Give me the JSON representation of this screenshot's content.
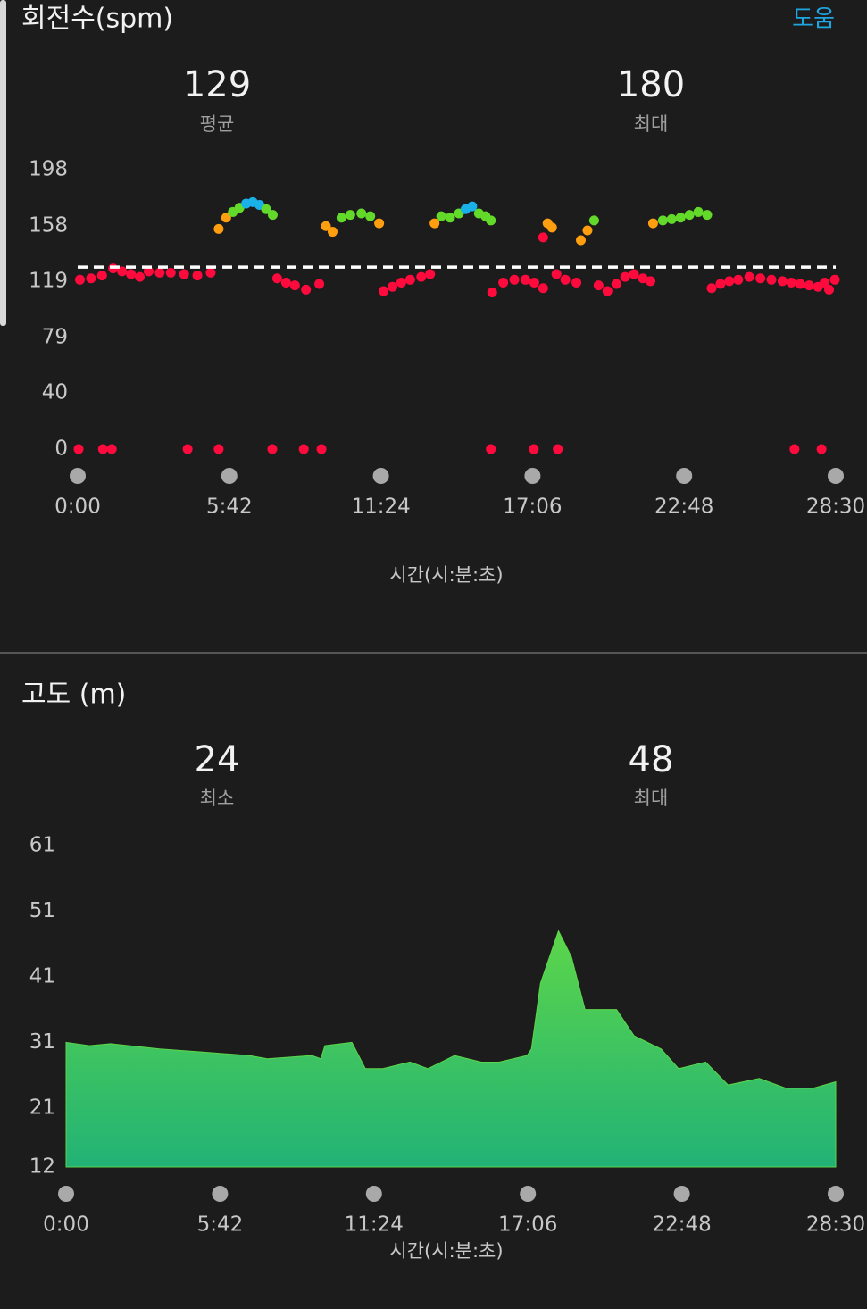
{
  "help": "도움",
  "chart_data": [
    {
      "type": "scatter",
      "title": "회전수(spm)",
      "stats": [
        {
          "value": 129,
          "label": "평균"
        },
        {
          "value": 180,
          "label": "최대"
        }
      ],
      "x_label": "시간(시:분:초)",
      "xlim": [
        0,
        1710
      ],
      "xticks": [
        {
          "value": 0,
          "label": "0:00"
        },
        {
          "value": 342,
          "label": "5:42"
        },
        {
          "value": 684,
          "label": "11:24"
        },
        {
          "value": 1026,
          "label": "17:06"
        },
        {
          "value": 1368,
          "label": "22:48"
        },
        {
          "value": 1710,
          "label": "28:30"
        }
      ],
      "ylim": [
        0,
        198
      ],
      "yticks": [
        0,
        40,
        79,
        119,
        158,
        198
      ],
      "x": [
        5,
        30,
        55,
        80,
        100,
        120,
        140,
        160,
        185,
        210,
        240,
        270,
        300,
        318,
        335,
        350,
        365,
        380,
        395,
        410,
        425,
        440,
        450,
        470,
        490,
        515,
        545,
        560,
        575,
        595,
        615,
        640,
        660,
        680,
        690,
        710,
        730,
        750,
        775,
        795,
        805,
        820,
        840,
        860,
        875,
        890,
        905,
        920,
        932,
        935,
        960,
        985,
        1010,
        1030,
        1050,
        1050,
        1060,
        1070,
        1080,
        1100,
        1125,
        1135,
        1150,
        1165,
        1175,
        1195,
        1215,
        1235,
        1255,
        1275,
        1292,
        1298,
        1320,
        1340,
        1360,
        1380,
        1400,
        1420,
        1430,
        1450,
        1470,
        1490,
        1515,
        1540,
        1565,
        1590,
        1610,
        1630,
        1650,
        1670,
        1685,
        1695,
        1708,
        2,
        57,
        77,
        248,
        318,
        439,
        510,
        550,
        932,
        1029,
        1083,
        1617,
        1678
      ],
      "values": [
        120,
        121,
        123,
        128,
        126,
        124,
        122,
        126,
        125,
        125,
        124,
        123,
        125,
        156,
        164,
        168,
        171,
        174,
        175,
        173,
        170,
        166,
        121,
        118,
        116,
        113,
        117,
        158,
        154,
        164,
        166,
        167,
        165,
        160,
        112,
        115,
        118,
        120,
        122,
        124,
        160,
        165,
        164,
        167,
        170,
        172,
        167,
        165,
        162,
        111,
        118,
        120,
        120,
        118,
        114,
        150,
        160,
        157,
        124,
        120,
        118,
        148,
        155,
        162,
        116,
        112,
        117,
        122,
        124,
        121,
        119,
        160,
        162,
        163,
        164,
        166,
        168,
        166,
        114,
        117,
        119,
        120,
        122,
        121,
        120,
        119,
        118,
        117,
        116,
        115,
        118,
        113,
        120,
        0,
        0,
        0,
        0,
        0,
        0,
        0,
        0,
        0,
        0,
        0,
        0,
        0
      ],
      "colors": [
        "#ff0a3c",
        "#ff0a3c",
        "#ff0a3c",
        "#ff0a3c",
        "#ff0a3c",
        "#ff0a3c",
        "#ff0a3c",
        "#ff0a3c",
        "#ff0a3c",
        "#ff0a3c",
        "#ff0a3c",
        "#ff0a3c",
        "#ff0a3c",
        "#ff9f0f",
        "#ff9f0f",
        "#63d92a",
        "#63d92a",
        "#1ab0e8",
        "#1ab0e8",
        "#1ab0e8",
        "#63d92a",
        "#63d92a",
        "#ff0a3c",
        "#ff0a3c",
        "#ff0a3c",
        "#ff0a3c",
        "#ff0a3c",
        "#ff9f0f",
        "#ff9f0f",
        "#63d92a",
        "#63d92a",
        "#63d92a",
        "#63d92a",
        "#ff9f0f",
        "#ff0a3c",
        "#ff0a3c",
        "#ff0a3c",
        "#ff0a3c",
        "#ff0a3c",
        "#ff0a3c",
        "#ff9f0f",
        "#63d92a",
        "#63d92a",
        "#63d92a",
        "#1ab0e8",
        "#1ab0e8",
        "#63d92a",
        "#63d92a",
        "#63d92a",
        "#ff0a3c",
        "#ff0a3c",
        "#ff0a3c",
        "#ff0a3c",
        "#ff0a3c",
        "#ff0a3c",
        "#ff0a3c",
        "#ff9f0f",
        "#ff9f0f",
        "#ff0a3c",
        "#ff0a3c",
        "#ff0a3c",
        "#ff9f0f",
        "#ff9f0f",
        "#63d92a",
        "#ff0a3c",
        "#ff0a3c",
        "#ff0a3c",
        "#ff0a3c",
        "#ff0a3c",
        "#ff0a3c",
        "#ff0a3c",
        "#ff9f0f",
        "#63d92a",
        "#63d92a",
        "#63d92a",
        "#63d92a",
        "#63d92a",
        "#63d92a",
        "#ff0a3c",
        "#ff0a3c",
        "#ff0a3c",
        "#ff0a3c",
        "#ff0a3c",
        "#ff0a3c",
        "#ff0a3c",
        "#ff0a3c",
        "#ff0a3c",
        "#ff0a3c",
        "#ff0a3c",
        "#ff0a3c",
        "#ff0a3c",
        "#ff0a3c",
        "#ff0a3c",
        "#ff0a3c",
        "#ff0a3c",
        "#ff0a3c",
        "#ff0a3c",
        "#ff0a3c",
        "#ff0a3c",
        "#ff0a3c",
        "#ff0a3c",
        "#ff0a3c",
        "#ff0a3c",
        "#ff0a3c",
        "#ff0a3c",
        "#ff0a3c"
      ]
    },
    {
      "type": "area",
      "title": "고도 (m)",
      "stats": [
        {
          "value": 24,
          "label": "최소"
        },
        {
          "value": 48,
          "label": "최대"
        }
      ],
      "x_label": "시간(시:분:초)",
      "xlim": [
        0,
        1710
      ],
      "xticks": [
        {
          "value": 0,
          "label": "0:00"
        },
        {
          "value": 342,
          "label": "5:42"
        },
        {
          "value": 684,
          "label": "11:24"
        },
        {
          "value": 1026,
          "label": "17:06"
        },
        {
          "value": 1368,
          "label": "22:48"
        },
        {
          "value": 1710,
          "label": "28:30"
        }
      ],
      "ylim": [
        12,
        61
      ],
      "yticks": [
        12,
        21,
        31,
        41,
        51,
        61
      ],
      "color": "#5cd64a",
      "x": [
        0,
        52,
        99,
        208,
        307,
        407,
        447,
        546,
        566,
        575,
        635,
        665,
        704,
        764,
        804,
        863,
        923,
        962,
        1024,
        1034,
        1054,
        1094,
        1123,
        1153,
        1223,
        1262,
        1322,
        1361,
        1421,
        1471,
        1540,
        1600,
        1659,
        1710
      ],
      "values": [
        31,
        30.5,
        30.8,
        30,
        29.5,
        29,
        28.5,
        29,
        28.5,
        30.5,
        31,
        27,
        27,
        28,
        27,
        29,
        28,
        28,
        29,
        30,
        40,
        48,
        44,
        36,
        36,
        32,
        30,
        27,
        28,
        24.5,
        25.5,
        24,
        24,
        25
      ]
    }
  ]
}
